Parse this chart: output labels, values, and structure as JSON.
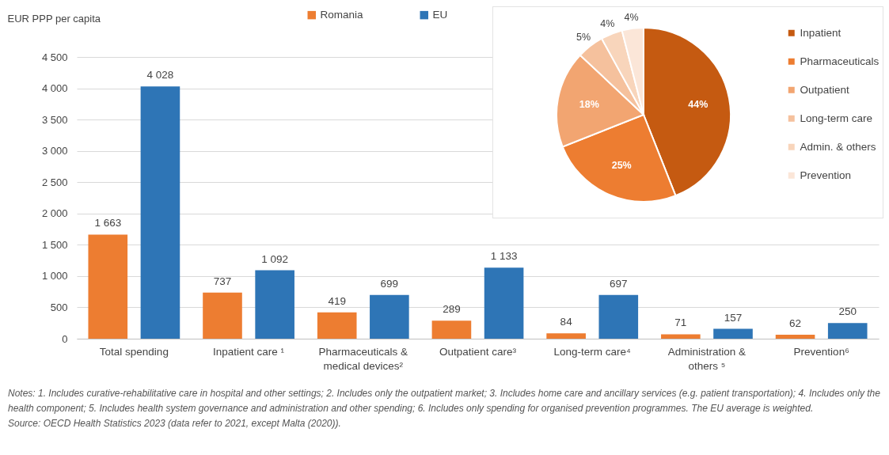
{
  "chart_data": [
    {
      "type": "bar",
      "ylabel": "EUR PPP per capita",
      "categories": [
        "Total spending",
        "Inpatient care ¹",
        "Pharmaceuticals & medical devices²",
        "Outpatient care³",
        "Long-term care⁴",
        "Administration & others ⁵",
        "Prevention⁶"
      ],
      "series": [
        {
          "name": "Romania",
          "color": "#ed7d31",
          "values": [
            1663,
            737,
            419,
            289,
            84,
            71,
            62
          ],
          "value_labels": [
            "1 663",
            "737",
            "419",
            "289",
            "84",
            "71",
            "62"
          ]
        },
        {
          "name": "EU",
          "color": "#2e75b6",
          "values": [
            4028,
            1092,
            699,
            1133,
            697,
            157,
            250
          ],
          "value_labels": [
            "4 028",
            "1 092",
            "699",
            "1 133",
            "697",
            "157",
            "250"
          ]
        }
      ],
      "ylim": [
        0,
        4500
      ],
      "yticks": [
        0,
        500,
        {
          "value": 1000,
          "label": "1 000"
        },
        {
          "value": 1500,
          "label": "1 500"
        },
        {
          "value": 2000,
          "label": "2 000"
        },
        {
          "value": 2500,
          "label": "2 500"
        },
        {
          "value": 3000,
          "label": "3 000"
        },
        {
          "value": 3500,
          "label": "3 500"
        },
        {
          "value": 4000,
          "label": "4 000"
        },
        {
          "value": 4500,
          "label": "4 500"
        }
      ],
      "grid": "y",
      "legend": "top",
      "annotations": [
        "Notes: 1. Includes curative-rehabilitative care in hospital and other settings; 2. Includes only the outpatient market; 3. Includes home care and ancillary services (e.g. patient transportation); 4. Includes only the health component; 5. Includes health system governance and administration and other spending; 6. Includes only spending for organised prevention programmes. The EU average is weighted.",
        "Source: OECD Health Statistics 2023 (data refer to 2021, except Malta (2020))."
      ]
    },
    {
      "type": "pie",
      "categories": [
        "Inpatient",
        "Pharmaceuticals",
        "Outpatient",
        "Long-term care",
        "Admin. & others",
        "Prevention"
      ],
      "values": [
        44,
        25,
        18,
        5,
        4,
        4
      ],
      "colors": [
        "#c55a11",
        "#ed7d31",
        "#f2a571",
        "#f5c19d",
        "#f8d5bb",
        "#fbe6d8"
      ],
      "value_labels": [
        "44%",
        "25%",
        "18%",
        "5%",
        "4%",
        "4%"
      ],
      "legend": "right"
    }
  ]
}
